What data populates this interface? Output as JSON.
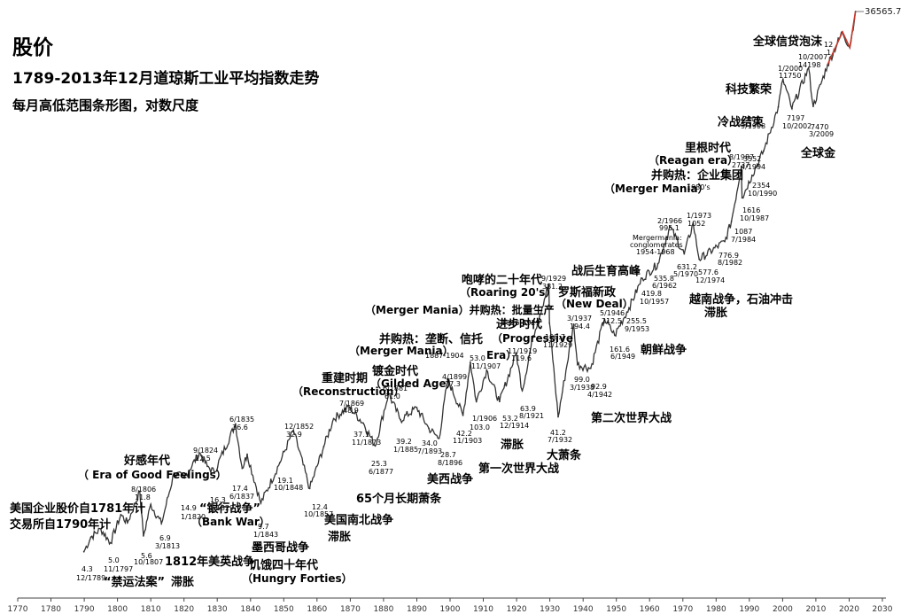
{
  "header": {
    "title": "股价",
    "subtitle": "1789-2013年12月道琼斯工业平均指数走势",
    "subsubtitle": "每月高低范围条形图，对数尺度"
  },
  "chart_data": {
    "type": "line",
    "title": "1789-2013年12月道琼斯工业平均指数走势",
    "subtitle": "每月高低范围条形图，对数尺度",
    "xlabel": "",
    "ylabel": "",
    "y_scale": "log",
    "grid": false,
    "legend": "none",
    "xlim": [
      1770,
      2030
    ],
    "x_ticks": [
      1770,
      1780,
      1790,
      1800,
      1810,
      1820,
      1830,
      1840,
      1850,
      1860,
      1870,
      1880,
      1890,
      1900,
      1910,
      1920,
      1930,
      1940,
      1950,
      1960,
      1970,
      1980,
      1990,
      2000,
      2010,
      2020,
      2030
    ],
    "series": [
      {
        "values": [
          {
            "x": 1789.9,
            "y": 4.3
          },
          {
            "x": 1792,
            "y": 5.5
          },
          {
            "x": 1795,
            "y": 6.3
          },
          {
            "x": 1797.9,
            "y": 5.0
          },
          {
            "x": 1801,
            "y": 8.0
          },
          {
            "x": 1803,
            "y": 7.0
          },
          {
            "x": 1806.7,
            "y": 11.8
          },
          {
            "x": 1807.8,
            "y": 5.6
          },
          {
            "x": 1810,
            "y": 9.5
          },
          {
            "x": 1813.2,
            "y": 6.9
          },
          {
            "x": 1817,
            "y": 16
          },
          {
            "x": 1820.1,
            "y": 14.9
          },
          {
            "x": 1824.7,
            "y": 22.5
          },
          {
            "x": 1827,
            "y": 18
          },
          {
            "x": 1829.1,
            "y": 16.3
          },
          {
            "x": 1835.5,
            "y": 36.6
          },
          {
            "x": 1837.5,
            "y": 17.4
          },
          {
            "x": 1839,
            "y": 22
          },
          {
            "x": 1843.1,
            "y": 9.7
          },
          {
            "x": 1848.8,
            "y": 19.1
          },
          {
            "x": 1852.9,
            "y": 32.9
          },
          {
            "x": 1857.8,
            "y": 12.4
          },
          {
            "x": 1862,
            "y": 25
          },
          {
            "x": 1865,
            "y": 40
          },
          {
            "x": 1869.6,
            "y": 48.9
          },
          {
            "x": 1873.9,
            "y": 37.1
          },
          {
            "x": 1877.5,
            "y": 25.3
          },
          {
            "x": 1881.5,
            "y": 61.0
          },
          {
            "x": 1885.1,
            "y": 39.2
          },
          {
            "x": 1890,
            "y": 48
          },
          {
            "x": 1893.6,
            "y": 34.0
          },
          {
            "x": 1896.7,
            "y": 28.7
          },
          {
            "x": 1899.3,
            "y": 77.3
          },
          {
            "x": 1903.9,
            "y": 42.2
          },
          {
            "x": 1906.1,
            "y": 103.0
          },
          {
            "x": 1907.9,
            "y": 53.0
          },
          {
            "x": 1911,
            "y": 90
          },
          {
            "x": 1914.9,
            "y": 53.2
          },
          {
            "x": 1919.9,
            "y": 119.6
          },
          {
            "x": 1921.7,
            "y": 63.9
          },
          {
            "x": 1925,
            "y": 160
          },
          {
            "x": 1929.7,
            "y": 381.2
          },
          {
            "x": 1929.9,
            "y": 198.7
          },
          {
            "x": 1932.5,
            "y": 41.2
          },
          {
            "x": 1937.2,
            "y": 194.4
          },
          {
            "x": 1938.3,
            "y": 99.0
          },
          {
            "x": 1942.3,
            "y": 92.9
          },
          {
            "x": 1946.4,
            "y": 212.5
          },
          {
            "x": 1949.5,
            "y": 161.6
          },
          {
            "x": 1953.8,
            "y": 255.5
          },
          {
            "x": 1957.8,
            "y": 419.8
          },
          {
            "x": 1966.1,
            "y": 995.1
          },
          {
            "x": 1962.5,
            "y": 535.8
          },
          {
            "x": 1970.4,
            "y": 631.2
          },
          {
            "x": 1973.1,
            "y": 1052
          },
          {
            "x": 1974.9,
            "y": 577.6
          },
          {
            "x": 1982.6,
            "y": 776.9
          },
          {
            "x": 1984.6,
            "y": 1087
          },
          {
            "x": 1987.6,
            "y": 2737
          },
          {
            "x": 1987.8,
            "y": 1616
          },
          {
            "x": 1990.8,
            "y": 2354
          },
          {
            "x": 1994.3,
            "y": 3552
          },
          {
            "x": 1998.7,
            "y": 7400
          },
          {
            "x": 2000.1,
            "y": 11750
          },
          {
            "x": 2002.8,
            "y": 7197
          },
          {
            "x": 2007.8,
            "y": 14198
          },
          {
            "x": 2009.2,
            "y": 7470
          },
          {
            "x": 2013.5,
            "y": 15000
          },
          {
            "x": 2018,
            "y": 26000
          },
          {
            "x": 2020.2,
            "y": 20000
          },
          {
            "x": 2021.9,
            "y": 36565.73
          }
        ]
      }
    ],
    "max_label": "36565.73"
  },
  "annotations": [
    {
      "text": "美国企业股价自1781年计",
      "bold": true,
      "size": 13
    },
    {
      "text": "交易所自1790年计",
      "bold": true,
      "size": 13
    },
    {
      "text": "好感年代",
      "bold": true,
      "size": 13
    },
    {
      "text": "（ Era of Good Feelings）",
      "bold": true,
      "size": 12
    },
    {
      "text": "“禁运法案”",
      "bold": true,
      "size": 13
    },
    {
      "text": "1812年美英战争",
      "bold": true,
      "size": 13
    },
    {
      "text": "滞胀",
      "bold": true,
      "size": 13
    },
    {
      "text": "“银行战争”",
      "bold": true,
      "size": 13
    },
    {
      "text": "（Bank War）",
      "bold": true,
      "size": 12
    },
    {
      "text": "墨西哥战争",
      "bold": true,
      "size": 13
    },
    {
      "text": "饥饿四十年代",
      "bold": true,
      "size": 13
    },
    {
      "text": "（Hungry Forties）",
      "bold": true,
      "size": 12
    },
    {
      "text": "美国南北战争",
      "bold": true,
      "size": 13
    },
    {
      "text": "滞胀",
      "bold": true,
      "size": 13
    },
    {
      "text": "65个月长期萧条",
      "bold": true,
      "size": 13
    },
    {
      "text": "重建时期",
      "bold": true,
      "size": 13
    },
    {
      "text": "（Reconstruction）",
      "bold": true,
      "size": 12
    },
    {
      "text": "镀金时代",
      "bold": true,
      "size": 13
    },
    {
      "text": "（Gilded Age）",
      "bold": true,
      "size": 12
    },
    {
      "text": "并购热：垄断、信托",
      "bold": true,
      "size": 13
    },
    {
      "text": "（Merger Mania）",
      "bold": true,
      "size": 12
    },
    {
      "text": "（Merger Mania）并购热：批量生产",
      "bold": true,
      "size": 12
    },
    {
      "text": "咆哮的二十年代",
      "bold": true,
      "size": 13
    },
    {
      "text": "（Roaring 20's）",
      "bold": true,
      "size": 12
    },
    {
      "text": "进步时代",
      "bold": true,
      "size": 13
    },
    {
      "text": "（Progressive",
      "bold": true,
      "size": 12
    },
    {
      "text": "Era）",
      "bold": true,
      "size": 12
    },
    {
      "text": "美西战争",
      "bold": true,
      "size": 13
    },
    {
      "text": "滞胀",
      "bold": true,
      "size": 13
    },
    {
      "text": "第一次世界大战",
      "bold": true,
      "size": 13
    },
    {
      "text": "大萧条",
      "bold": true,
      "size": 13
    },
    {
      "text": "罗斯福新政",
      "bold": true,
      "size": 13
    },
    {
      "text": "（New Deal）",
      "bold": true,
      "size": 12
    },
    {
      "text": "第二次世界大战",
      "bold": true,
      "size": 13
    },
    {
      "text": "朝鲜战争",
      "bold": true,
      "size": 13
    },
    {
      "text": "战后生育高峰",
      "bold": true,
      "size": 13
    },
    {
      "text": "越南战争，石油冲击",
      "bold": true,
      "size": 13
    },
    {
      "text": "滞胀",
      "bold": true,
      "size": 13
    },
    {
      "text": "并购热：企业集团",
      "bold": true,
      "size": 13
    },
    {
      "text": "（Merger Mania）",
      "bold": true,
      "size": 12
    },
    {
      "text": "里根时代",
      "bold": true,
      "size": 13
    },
    {
      "text": "（Reagan era）",
      "bold": true,
      "size": 12
    },
    {
      "text": "冷战结束",
      "bold": true,
      "size": 13
    },
    {
      "text": "科技繁荣",
      "bold": true,
      "size": 13
    },
    {
      "text": "全球信贷泡沫",
      "bold": true,
      "size": 13
    },
    {
      "text": "全球金",
      "bold": true,
      "size": 13
    },
    {
      "text": "Mergermania:",
      "bold": false,
      "size": 8
    },
    {
      "text": "conglomerates",
      "bold": false,
      "size": 8
    },
    {
      "text": "1954-1968",
      "bold": false,
      "size": 8
    },
    {
      "text": "1980's",
      "bold": false,
      "size": 8
    },
    {
      "text": "1887-1904",
      "bold": false,
      "size": 8
    },
    {
      "text": "1916-1929",
      "bold": false,
      "size": 8
    },
    {
      "text": "4.3",
      "bold": false,
      "size": 8
    },
    {
      "text": "12/1789",
      "bold": false,
      "size": 8
    },
    {
      "text": "5.0",
      "bold": false,
      "size": 8
    },
    {
      "text": "11/1797",
      "bold": false,
      "size": 8
    },
    {
      "text": "8/1806",
      "bold": false,
      "size": 8
    },
    {
      "text": "11.8",
      "bold": false,
      "size": 8
    },
    {
      "text": "5.6",
      "bold": false,
      "size": 8
    },
    {
      "text": "10/1807",
      "bold": false,
      "size": 8
    },
    {
      "text": "6.9",
      "bold": false,
      "size": 8
    },
    {
      "text": "3/1813",
      "bold": false,
      "size": 8
    },
    {
      "text": "14.9",
      "bold": false,
      "size": 8
    },
    {
      "text": "1/1820",
      "bold": false,
      "size": 8
    },
    {
      "text": "9/1824",
      "bold": false,
      "size": 8
    },
    {
      "text": "22.5",
      "bold": false,
      "size": 8
    },
    {
      "text": "16.3",
      "bold": false,
      "size": 8
    },
    {
      "text": "1/1829",
      "bold": false,
      "size": 8
    },
    {
      "text": "6/1835",
      "bold": false,
      "size": 8
    },
    {
      "text": "36.6",
      "bold": false,
      "size": 8
    },
    {
      "text": "17.4",
      "bold": false,
      "size": 8
    },
    {
      "text": "6/1837",
      "bold": false,
      "size": 8
    },
    {
      "text": "9.7",
      "bold": false,
      "size": 8
    },
    {
      "text": "1/1843",
      "bold": false,
      "size": 8
    },
    {
      "text": "19.1",
      "bold": false,
      "size": 8
    },
    {
      "text": "10/1848",
      "bold": false,
      "size": 8
    },
    {
      "text": "12/1852",
      "bold": false,
      "size": 8
    },
    {
      "text": "32.9",
      "bold": false,
      "size": 8
    },
    {
      "text": "12.4",
      "bold": false,
      "size": 8
    },
    {
      "text": "10/1857",
      "bold": false,
      "size": 8
    },
    {
      "text": "7/1869",
      "bold": false,
      "size": 8
    },
    {
      "text": "48.9",
      "bold": false,
      "size": 8
    },
    {
      "text": "37.1",
      "bold": false,
      "size": 8
    },
    {
      "text": "11/1873",
      "bold": false,
      "size": 8
    },
    {
      "text": "25.3",
      "bold": false,
      "size": 8
    },
    {
      "text": "6/1877",
      "bold": false,
      "size": 8
    },
    {
      "text": "6/1881",
      "bold": false,
      "size": 8
    },
    {
      "text": "61.0",
      "bold": false,
      "size": 8
    },
    {
      "text": "39.2",
      "bold": false,
      "size": 8
    },
    {
      "text": "1/1885",
      "bold": false,
      "size": 8
    },
    {
      "text": "34.0",
      "bold": false,
      "size": 8
    },
    {
      "text": "7/1893",
      "bold": false,
      "size": 8
    },
    {
      "text": "28.7",
      "bold": false,
      "size": 8
    },
    {
      "text": "8/1896",
      "bold": false,
      "size": 8
    },
    {
      "text": "4/1899",
      "bold": false,
      "size": 8
    },
    {
      "text": "77.3",
      "bold": false,
      "size": 8
    },
    {
      "text": "42.2",
      "bold": false,
      "size": 8
    },
    {
      "text": "11/1903",
      "bold": false,
      "size": 8
    },
    {
      "text": "1/1906",
      "bold": false,
      "size": 8
    },
    {
      "text": "103.0",
      "bold": false,
      "size": 8
    },
    {
      "text": "53.0",
      "bold": false,
      "size": 8
    },
    {
      "text": "11/1907",
      "bold": false,
      "size": 8
    },
    {
      "text": "53.2",
      "bold": false,
      "size": 8
    },
    {
      "text": "12/1914",
      "bold": false,
      "size": 8
    },
    {
      "text": "11/1919",
      "bold": false,
      "size": 8
    },
    {
      "text": "119.6",
      "bold": false,
      "size": 8
    },
    {
      "text": "63.9",
      "bold": false,
      "size": 8
    },
    {
      "text": "8/1921",
      "bold": false,
      "size": 8
    },
    {
      "text": "9/1929",
      "bold": false,
      "size": 8
    },
    {
      "text": "381.2",
      "bold": false,
      "size": 8
    },
    {
      "text": "198.7",
      "bold": false,
      "size": 8
    },
    {
      "text": "11/1929",
      "bold": false,
      "size": 8
    },
    {
      "text": "41.2",
      "bold": false,
      "size": 8
    },
    {
      "text": "7/1932",
      "bold": false,
      "size": 8
    },
    {
      "text": "3/1937",
      "bold": false,
      "size": 8
    },
    {
      "text": "194.4",
      "bold": false,
      "size": 8
    },
    {
      "text": "99.0",
      "bold": false,
      "size": 8
    },
    {
      "text": "3/1938",
      "bold": false,
      "size": 8
    },
    {
      "text": "92.9",
      "bold": false,
      "size": 8
    },
    {
      "text": "4/1942",
      "bold": false,
      "size": 8
    },
    {
      "text": "5/1946",
      "bold": false,
      "size": 8
    },
    {
      "text": "212.5",
      "bold": false,
      "size": 8
    },
    {
      "text": "161.6",
      "bold": false,
      "size": 8
    },
    {
      "text": "6/1949",
      "bold": false,
      "size": 8
    },
    {
      "text": "255.5",
      "bold": false,
      "size": 8
    },
    {
      "text": "9/1953",
      "bold": false,
      "size": 8
    },
    {
      "text": "419.8",
      "bold": false,
      "size": 8
    },
    {
      "text": "10/1957",
      "bold": false,
      "size": 8
    },
    {
      "text": "2/1966",
      "bold": false,
      "size": 8
    },
    {
      "text": "995.1",
      "bold": false,
      "size": 8
    },
    {
      "text": "535.8",
      "bold": false,
      "size": 8
    },
    {
      "text": "6/1962",
      "bold": false,
      "size": 8
    },
    {
      "text": "1/1973",
      "bold": false,
      "size": 8
    },
    {
      "text": "1052",
      "bold": false,
      "size": 8
    },
    {
      "text": "631.2",
      "bold": false,
      "size": 8
    },
    {
      "text": "5/1970",
      "bold": false,
      "size": 8
    },
    {
      "text": "577.6",
      "bold": false,
      "size": 8
    },
    {
      "text": "12/1974",
      "bold": false,
      "size": 8
    },
    {
      "text": "776.9",
      "bold": false,
      "size": 8
    },
    {
      "text": "8/1982",
      "bold": false,
      "size": 8
    },
    {
      "text": "1087",
      "bold": false,
      "size": 8
    },
    {
      "text": "7/1984",
      "bold": false,
      "size": 8
    },
    {
      "text": "1616",
      "bold": false,
      "size": 8
    },
    {
      "text": "10/1987",
      "bold": false,
      "size": 8
    },
    {
      "text": "2354",
      "bold": false,
      "size": 8
    },
    {
      "text": "10/1990",
      "bold": false,
      "size": 8
    },
    {
      "text": "8/1987",
      "bold": false,
      "size": 8
    },
    {
      "text": "2737",
      "bold": false,
      "size": 8
    },
    {
      "text": "3552",
      "bold": false,
      "size": 8
    },
    {
      "text": "4/1994",
      "bold": false,
      "size": 8
    },
    {
      "text": "7400",
      "bold": false,
      "size": 8
    },
    {
      "text": "9/1998",
      "bold": false,
      "size": 8
    },
    {
      "text": "1/2000",
      "bold": false,
      "size": 8
    },
    {
      "text": "11750",
      "bold": false,
      "size": 8
    },
    {
      "text": "7197",
      "bold": false,
      "size": 8
    },
    {
      "text": "10/2002",
      "bold": false,
      "size": 8
    },
    {
      "text": "10/2007",
      "bold": false,
      "size": 8
    },
    {
      "text": "14198",
      "bold": false,
      "size": 8
    },
    {
      "text": "7470",
      "bold": false,
      "size": 8
    },
    {
      "text": "3/2009",
      "bold": false,
      "size": 8
    },
    {
      "text": "12",
      "bold": false,
      "size": 8
    },
    {
      "text": "1",
      "bold": false,
      "size": 8
    }
  ],
  "colors": {
    "line": "#333333",
    "recent": "#c0392b",
    "axis": "#444444",
    "text": "#000000"
  }
}
